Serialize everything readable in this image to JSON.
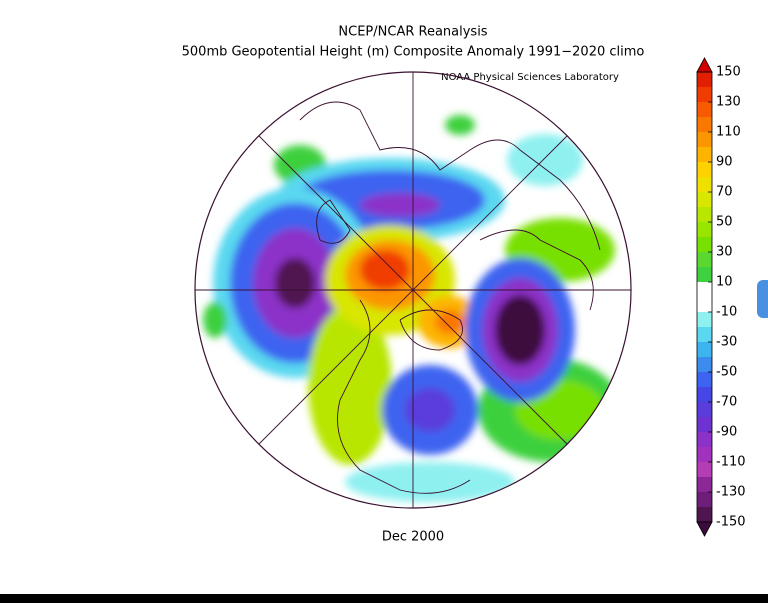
{
  "header": {
    "title": "NCEP/NCAR Reanalysis",
    "subtitle": "500mb Geopotential Height (m) Composite Anomaly 1991−2020 climo",
    "credit": "NOAA Physical Sciences Laboratory"
  },
  "map": {
    "label": "Dec 2000"
  },
  "colorbar": {
    "lim": [
      -150,
      150
    ],
    "ticks": [
      150,
      130,
      110,
      90,
      70,
      50,
      30,
      10,
      -10,
      -30,
      -50,
      -70,
      -90,
      -110,
      -130,
      -150
    ],
    "over_color": "#d40000",
    "under_color": "#3c0a3c",
    "colors": [
      "#e21f00",
      "#f03c00",
      "#f75a00",
      "#fa7800",
      "#fc9600",
      "#fdb400",
      "#fed200",
      "#f0e000",
      "#d8e600",
      "#b8e600",
      "#98e600",
      "#78e000",
      "#5ad830",
      "#3ed03e",
      "#ffffff",
      "#ffffff",
      "#8ff0f0",
      "#5ad8f0",
      "#3cb4f0",
      "#3c8cf0",
      "#3c64f0",
      "#4646e6",
      "#5a3cdc",
      "#6e32d2",
      "#8c32c8",
      "#a032be",
      "#b43cb4",
      "#8c2896",
      "#6e1e78",
      "#501450"
    ]
  }
}
